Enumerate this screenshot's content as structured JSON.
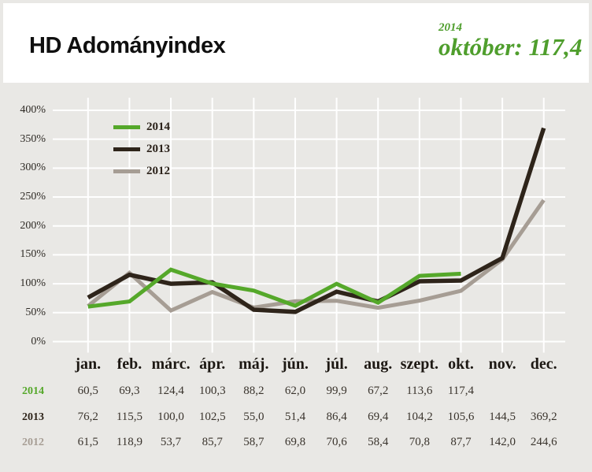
{
  "colors": {
    "page_bg": "#e9e8e5",
    "panel_bg": "#ffffff",
    "accent_green": "#4f9e2d",
    "grid_white": "#ffffff",
    "text_dark": "#2b221a"
  },
  "header": {
    "title": "HD Adományindex",
    "badge_year": "2014",
    "badge_value": "október: 117,4"
  },
  "chart_data": {
    "type": "line",
    "title": "HD Adományindex",
    "categories": [
      "jan.",
      "feb.",
      "márc.",
      "ápr.",
      "máj.",
      "jún.",
      "júl.",
      "aug.",
      "szept.",
      "okt.",
      "nov.",
      "dec."
    ],
    "y_ticks_percent": [
      0,
      50,
      100,
      150,
      200,
      250,
      300,
      350,
      400
    ],
    "y_tick_suffix": "%",
    "ylim": [
      0,
      400
    ],
    "grid": true,
    "legend_position": "top-left-inside",
    "legend_order": [
      "2014",
      "2013",
      "2012"
    ],
    "series": [
      {
        "name": "2014",
        "color": "#55a82a",
        "values": [
          60.5,
          69.3,
          124.4,
          100.3,
          88.2,
          62.0,
          99.9,
          67.2,
          113.6,
          117.4,
          null,
          null
        ]
      },
      {
        "name": "2013",
        "color": "#2e241a",
        "values": [
          76.2,
          115.5,
          100.0,
          102.5,
          55.0,
          51.4,
          86.4,
          69.4,
          104.2,
          105.6,
          144.5,
          369.2
        ]
      },
      {
        "name": "2012",
        "color": "#a69d94",
        "values": [
          61.5,
          118.9,
          53.7,
          85.7,
          58.7,
          69.8,
          70.6,
          58.4,
          70.8,
          87.7,
          142.0,
          244.6
        ]
      }
    ]
  }
}
